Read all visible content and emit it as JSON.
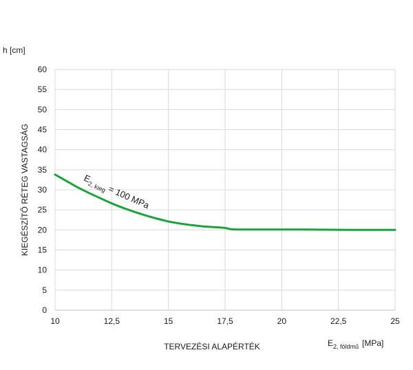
{
  "chart_data": {
    "type": "line",
    "y_unit_label": "h [cm]",
    "ylabel": "KIEGÉSZÍTŐ RÉTEG VASTAGSÁG",
    "xlabel": "TERVEZÉSI ALAPÉRTÉK",
    "x_unit_label": {
      "main": "E",
      "sub": "2, földmű",
      "unit": "[MPa]"
    },
    "xlim": [
      10,
      25
    ],
    "ylim": [
      0,
      60
    ],
    "x_ticks": [
      "10",
      "12,5",
      "15",
      "17,5",
      "20",
      "22,5",
      "25"
    ],
    "x_tick_values": [
      10,
      12.5,
      15,
      17.5,
      20,
      22.5,
      25
    ],
    "y_ticks": [
      "0",
      "5",
      "10",
      "15",
      "20",
      "25",
      "30",
      "35",
      "40",
      "45",
      "50",
      "55",
      "60"
    ],
    "y_tick_values": [
      0,
      5,
      10,
      15,
      20,
      25,
      30,
      35,
      40,
      45,
      50,
      55,
      60
    ],
    "grid": true,
    "series": [
      {
        "name": "E2, kieg = 100 MPa",
        "color": "#1aa33a",
        "x": [
          10,
          10.5,
          11,
          11.5,
          12,
          12.5,
          13,
          13.5,
          14,
          14.5,
          15,
          15.5,
          16,
          16.5,
          17,
          17.25,
          17.5,
          17.75,
          18,
          19,
          20,
          21,
          22,
          23,
          24,
          25
        ],
        "y": [
          33.8,
          32.2,
          30.6,
          29.2,
          27.9,
          26.6,
          25.5,
          24.5,
          23.6,
          22.8,
          22.1,
          21.6,
          21.2,
          20.9,
          20.7,
          20.6,
          20.5,
          20.2,
          20.1,
          20.1,
          20.1,
          20.1,
          20.05,
          20.0,
          20.0,
          20.0
        ]
      }
    ],
    "annotation": {
      "main": "E",
      "sub": "2, kieg",
      "rest": " = 100 MPa"
    }
  }
}
